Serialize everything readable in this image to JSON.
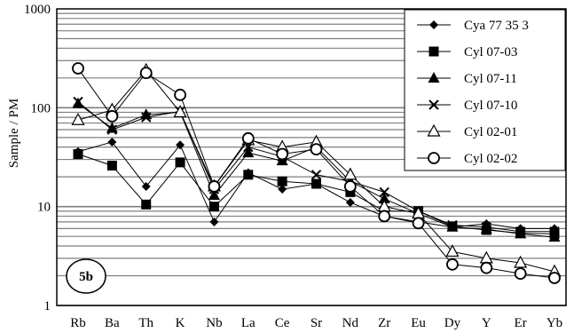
{
  "chart_data": {
    "type": "line",
    "title": "",
    "xlabel": "",
    "ylabel": "Sample / PM",
    "yscale": "log",
    "ylim": [
      1,
      1000
    ],
    "yticks": [
      "1",
      "10",
      "100",
      "1000"
    ],
    "grid": "horizontal",
    "legend_position": "top-right",
    "panel_label": "5b",
    "categories": [
      "Rb",
      "Ba",
      "Th",
      "K",
      "Nb",
      "La",
      "Ce",
      "Sr",
      "Nd",
      "Zr",
      "Eu",
      "Dy",
      "Y",
      "Er",
      "Yb"
    ],
    "series": [
      {
        "name": "Cya 77 35 3",
        "marker": "diamond-filled",
        "values": [
          36,
          45,
          16,
          42,
          7,
          22,
          15,
          17,
          11,
          8,
          7,
          6.2,
          6.7,
          6,
          6
        ]
      },
      {
        "name": "Cyl 07-03",
        "marker": "square-filled",
        "values": [
          34,
          26,
          10.5,
          28,
          10,
          21,
          18,
          17,
          14,
          9,
          9,
          6.3,
          5.8,
          5.4,
          5.3
        ]
      },
      {
        "name": "Cyl 07-11",
        "marker": "triangle-filled",
        "values": [
          110,
          62,
          85,
          90,
          13,
          35,
          29,
          40,
          18,
          12,
          8.5,
          6.2,
          5.9,
          5.3,
          4.9
        ]
      },
      {
        "name": "Cyl 07-10",
        "marker": "x",
        "values": [
          115,
          60,
          80,
          92,
          15,
          40,
          32,
          21,
          18,
          14,
          9,
          6.5,
          6.2,
          5.6,
          5.6
        ]
      },
      {
        "name": "Cyl 02-01",
        "marker": "triangle-open",
        "values": [
          75,
          95,
          240,
          90,
          16,
          47,
          40,
          45,
          21,
          10,
          8.5,
          3.5,
          3.0,
          2.7,
          2.2
        ]
      },
      {
        "name": "Cyl 02-02",
        "marker": "circle-open",
        "values": [
          250,
          82,
          225,
          135,
          16,
          49,
          34,
          38,
          16,
          8,
          6.8,
          2.6,
          2.4,
          2.1,
          1.9
        ]
      }
    ]
  }
}
